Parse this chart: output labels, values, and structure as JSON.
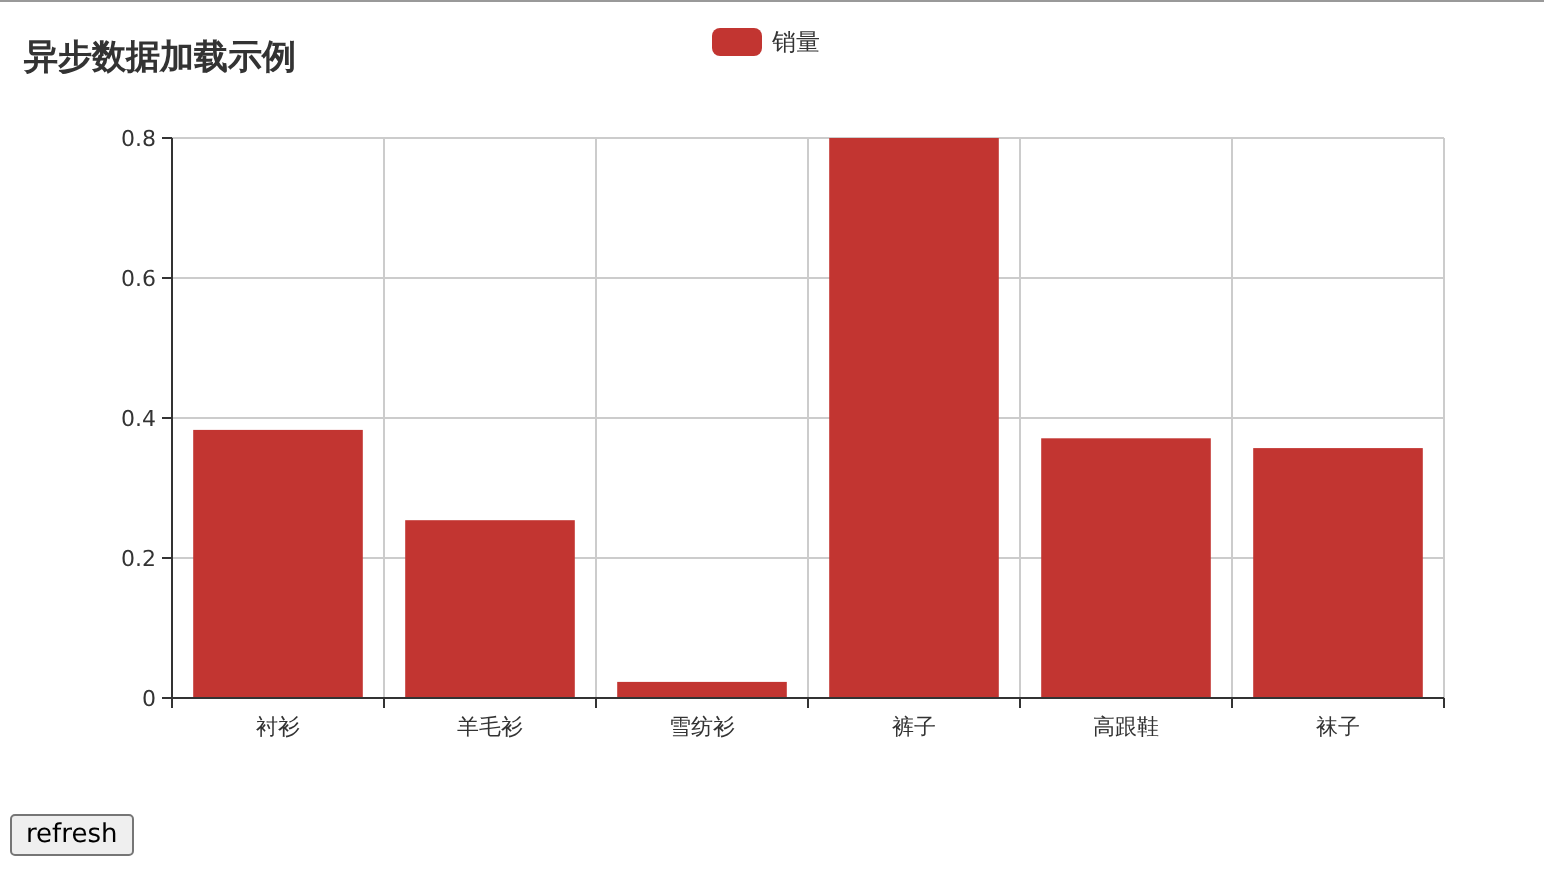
{
  "chart_data": {
    "type": "bar",
    "title": "异步数据加载示例",
    "categories": [
      "衬衫",
      "羊毛衫",
      "雪纺衫",
      "裤子",
      "高跟鞋",
      "袜子"
    ],
    "series": [
      {
        "name": "销量",
        "color": "#c23531",
        "values": [
          0.383,
          0.254,
          0.023,
          0.8,
          0.371,
          0.357
        ]
      }
    ],
    "ylim": [
      0,
      0.8
    ],
    "yticks": [
      0,
      0.2,
      0.4,
      0.6,
      0.8
    ],
    "grid": true,
    "legend": "top",
    "annotations": [
      "refresh"
    ]
  }
}
